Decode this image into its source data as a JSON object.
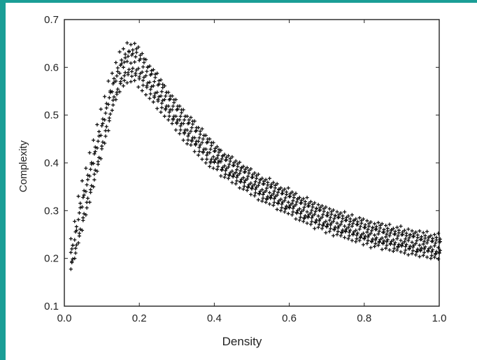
{
  "colors": {
    "frame": "#1a9e96",
    "marker": "#111111",
    "axis": "#222222"
  },
  "chart_data": {
    "type": "scatter",
    "title": "",
    "xlabel": "Density",
    "ylabel": "Complexity",
    "xlim": [
      0.0,
      1.0
    ],
    "ylim": [
      0.1,
      0.7
    ],
    "xticks": [
      "0.0",
      "0.2",
      "0.4",
      "0.6",
      "0.8",
      "1.0"
    ],
    "yticks": [
      "0.1",
      "0.2",
      "0.3",
      "0.4",
      "0.5",
      "0.6",
      "0.7"
    ],
    "grid": false,
    "legend": "none",
    "marker": "plus",
    "series": [
      {
        "x": [
          0.02,
          0.03,
          0.04,
          0.05,
          0.06,
          0.07,
          0.08,
          0.09,
          0.1,
          0.11,
          0.12,
          0.13,
          0.14,
          0.15,
          0.16,
          0.17,
          0.18,
          0.19,
          0.2,
          0.21,
          0.22,
          0.23,
          0.24,
          0.25,
          0.26,
          0.27,
          0.28,
          0.29,
          0.3,
          0.31,
          0.32,
          0.33,
          0.34,
          0.35,
          0.36,
          0.37,
          0.38,
          0.39,
          0.4,
          0.41,
          0.42,
          0.43,
          0.44,
          0.45,
          0.46,
          0.47,
          0.48,
          0.49,
          0.5,
          0.51,
          0.52,
          0.53,
          0.54,
          0.55,
          0.56,
          0.57,
          0.58,
          0.59,
          0.6,
          0.61,
          0.62,
          0.63,
          0.64,
          0.65,
          0.66,
          0.67,
          0.68,
          0.69,
          0.7,
          0.71,
          0.72,
          0.73,
          0.74,
          0.75,
          0.76,
          0.77,
          0.78,
          0.79,
          0.8,
          0.81,
          0.82,
          0.83,
          0.84,
          0.85,
          0.86,
          0.87,
          0.88,
          0.89,
          0.9,
          0.91,
          0.92,
          0.93,
          0.94,
          0.95,
          0.96,
          0.97,
          0.98,
          0.99,
          1.0
        ],
        "y": [
          0.21,
          0.24,
          0.28,
          0.31,
          0.34,
          0.37,
          0.4,
          0.43,
          0.46,
          0.49,
          0.52,
          0.55,
          0.57,
          0.59,
          0.6,
          0.61,
          0.61,
          0.61,
          0.6,
          0.59,
          0.58,
          0.57,
          0.56,
          0.55,
          0.54,
          0.53,
          0.52,
          0.51,
          0.5,
          0.49,
          0.48,
          0.47,
          0.465,
          0.455,
          0.445,
          0.44,
          0.43,
          0.42,
          0.415,
          0.41,
          0.4,
          0.395,
          0.39,
          0.385,
          0.38,
          0.375,
          0.37,
          0.365,
          0.36,
          0.355,
          0.35,
          0.345,
          0.34,
          0.34,
          0.335,
          0.33,
          0.325,
          0.32,
          0.32,
          0.315,
          0.31,
          0.305,
          0.3,
          0.3,
          0.295,
          0.29,
          0.29,
          0.285,
          0.28,
          0.28,
          0.275,
          0.275,
          0.27,
          0.27,
          0.265,
          0.265,
          0.26,
          0.26,
          0.255,
          0.255,
          0.25,
          0.25,
          0.25,
          0.245,
          0.245,
          0.245,
          0.24,
          0.24,
          0.24,
          0.235,
          0.235,
          0.235,
          0.23,
          0.23,
          0.23,
          0.23,
          0.225,
          0.225,
          0.225
        ],
        "spread": [
          0.03,
          0.04,
          0.05,
          0.05,
          0.05,
          0.05,
          0.05,
          0.05,
          0.05,
          0.05,
          0.05,
          0.04,
          0.04,
          0.04,
          0.04,
          0.04,
          0.04,
          0.04,
          0.04,
          0.04,
          0.035,
          0.035,
          0.035,
          0.035,
          0.035,
          0.03,
          0.03,
          0.03,
          0.03,
          0.03,
          0.03,
          0.03,
          0.03,
          0.03,
          0.03,
          0.03,
          0.03,
          0.03,
          0.025,
          0.025,
          0.025,
          0.025,
          0.025,
          0.025,
          0.025,
          0.025,
          0.025,
          0.025,
          0.025,
          0.025,
          0.025,
          0.025,
          0.025,
          0.025,
          0.025,
          0.025,
          0.025,
          0.025,
          0.025,
          0.025,
          0.025,
          0.025,
          0.025,
          0.025,
          0.025,
          0.025,
          0.025,
          0.025,
          0.025,
          0.025,
          0.025,
          0.025,
          0.025,
          0.025,
          0.025,
          0.025,
          0.025,
          0.025,
          0.025,
          0.025,
          0.025,
          0.025,
          0.025,
          0.025,
          0.025,
          0.025,
          0.025,
          0.025,
          0.025,
          0.025,
          0.025,
          0.025,
          0.025,
          0.025,
          0.025,
          0.025,
          0.025,
          0.025,
          0.025
        ]
      }
    ]
  }
}
